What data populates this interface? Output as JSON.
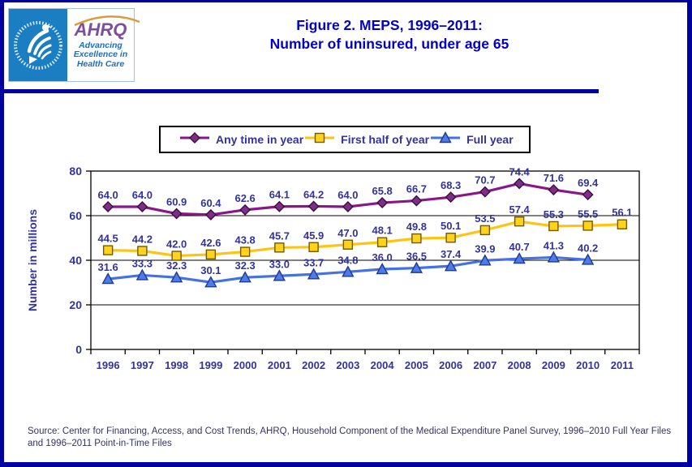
{
  "header": {
    "logo": {
      "seal_text": "DEPARTMENT OF HEALTH & HUMAN SERVICES·USA",
      "brand": "AHRQ",
      "tagline": [
        "Advancing",
        "Excellence in",
        "Health Care"
      ]
    },
    "title_line1": "Figure 2. MEPS, 1996–2011:",
    "title_line2": "Number of uninsured, under age 65"
  },
  "colors": {
    "frame_border": "#0000A0",
    "title_text": "#0202C8",
    "label_text": "#333399",
    "source_text": "#333366",
    "seal_blue": "#1B7EC2",
    "ahrq_purple": "#7B4E9E",
    "ahrq_arc_orange": "#DD9A3C",
    "tagline_blue": "#1A6FBF"
  },
  "chart_data": {
    "type": "line",
    "title": "Figure 2. MEPS, 1996–2011: Number of uninsured, under age 65",
    "categories": [
      "1996",
      "1997",
      "1998",
      "1999",
      "2000",
      "2001",
      "2002",
      "2003",
      "2004",
      "2005",
      "2006",
      "2007",
      "2008",
      "2009",
      "2010",
      "2011"
    ],
    "xlabel": "",
    "ylabel": "Number in millions",
    "ylim": [
      0,
      80
    ],
    "yticks": [
      0,
      20,
      40,
      60,
      80
    ],
    "grid": "horizontal",
    "legend_position": "top",
    "series": [
      {
        "id": "any-time-in-year",
        "name": "Any time in year",
        "marker": "diamond",
        "color": "#8A168A",
        "marker_fill": "#7D2F86",
        "marker_stroke": "#3F0C44",
        "values": [
          64.0,
          64.0,
          60.9,
          60.4,
          62.6,
          64.1,
          64.2,
          64.0,
          65.8,
          66.7,
          68.3,
          70.7,
          74.4,
          71.6,
          69.4,
          null
        ]
      },
      {
        "id": "first-half-of-year",
        "name": "First half of year",
        "marker": "square",
        "color": "#FFC412",
        "marker_fill": "#FFD21E",
        "marker_stroke": "#6E5B00",
        "values": [
          44.5,
          44.2,
          42.0,
          42.6,
          43.8,
          45.7,
          45.9,
          47.0,
          48.1,
          49.8,
          50.1,
          53.5,
          57.4,
          55.3,
          55.5,
          56.1
        ]
      },
      {
        "id": "full-year",
        "name": "Full year",
        "marker": "triangle",
        "color": "#4472E4",
        "marker_fill": "#4F7BE8",
        "marker_stroke": "#1F3A8F",
        "values": [
          31.6,
          33.3,
          32.3,
          30.1,
          32.3,
          33.0,
          33.7,
          34.8,
          36.0,
          36.5,
          37.4,
          39.9,
          40.7,
          41.3,
          40.2,
          null
        ]
      }
    ]
  },
  "source": "Source: Center for Financing, Access, and Cost Trends, AHRQ, Household Component of the Medical Expenditure Panel Survey,  1996–2010 Full Year Files and 1996–2011 Point-in-Time Files"
}
